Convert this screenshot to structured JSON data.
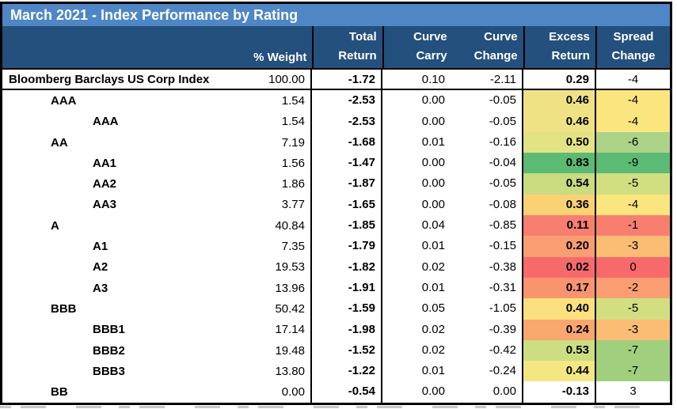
{
  "title": "March 2021 - Index Performance by Rating",
  "colors": {
    "title_bar_bg": "#4E86C6",
    "header_bg": "#24507E",
    "grid_border": "#000000",
    "heatmap_low": "#F8696B",
    "heatmap_mid": "#FFEB84",
    "heatmap_high": "#63BE7B"
  },
  "table": {
    "header": {
      "weight": "% Weight",
      "columns": [
        {
          "line1": "Total",
          "line2": "Return"
        },
        {
          "line1": "Curve",
          "line2": "Carry"
        },
        {
          "line1": "Curve",
          "line2": "Change"
        },
        {
          "line1": "Excess",
          "line2": "Return"
        },
        {
          "line1": "Spread",
          "line2": "Change"
        }
      ]
    },
    "rows": [
      {
        "label": "Bloomberg Barclays US Corp Index",
        "indent": 0,
        "weight": "100.00",
        "total_return": "-1.72",
        "curve_carry": "0.10",
        "curve_change": "-2.11",
        "excess_return": "0.29",
        "spread_change": "-4",
        "excess_bg": "",
        "spread_bg": ""
      },
      {
        "label": "AAA",
        "indent": 1,
        "weight": "1.54",
        "total_return": "-2.53",
        "curve_carry": "0.00",
        "curve_change": "-0.05",
        "excess_return": "0.46",
        "spread_change": "-4",
        "excess_bg": "#EFE285",
        "spread_bg": "#FAE57E"
      },
      {
        "label": "AAA",
        "indent": 2,
        "weight": "1.54",
        "total_return": "-2.53",
        "curve_carry": "0.00",
        "curve_change": "-0.05",
        "excess_return": "0.46",
        "spread_change": "-4",
        "excess_bg": "#EFE285",
        "spread_bg": "#FAE57E"
      },
      {
        "label": "AA",
        "indent": 1,
        "weight": "7.19",
        "total_return": "-1.68",
        "curve_carry": "0.01",
        "curve_change": "-0.16",
        "excess_return": "0.50",
        "spread_change": "-6",
        "excess_bg": "#E4E383",
        "spread_bg": "#ABD287"
      },
      {
        "label": "AA1",
        "indent": 2,
        "weight": "1.56",
        "total_return": "-1.47",
        "curve_carry": "0.00",
        "curve_change": "-0.04",
        "excess_return": "0.83",
        "spread_change": "-9",
        "excess_bg": "#5BBA73",
        "spread_bg": "#5BBA73"
      },
      {
        "label": "AA2",
        "indent": 2,
        "weight": "1.86",
        "total_return": "-1.87",
        "curve_carry": "0.00",
        "curve_change": "-0.05",
        "excess_return": "0.54",
        "spread_change": "-5",
        "excess_bg": "#C9DC80",
        "spread_bg": "#D2DF81"
      },
      {
        "label": "AA3",
        "indent": 2,
        "weight": "3.77",
        "total_return": "-1.65",
        "curve_carry": "0.00",
        "curve_change": "-0.08",
        "excess_return": "0.36",
        "spread_change": "-4",
        "excess_bg": "#FBD273",
        "spread_bg": "#FAE57E"
      },
      {
        "label": "A",
        "indent": 1,
        "weight": "40.84",
        "total_return": "-1.85",
        "curve_carry": "0.04",
        "curve_change": "-0.85",
        "excess_return": "0.11",
        "spread_change": "-1",
        "excess_bg": "#F87F70",
        "spread_bg": "#F87F70"
      },
      {
        "label": "A1",
        "indent": 2,
        "weight": "7.35",
        "total_return": "-1.79",
        "curve_carry": "0.01",
        "curve_change": "-0.15",
        "excess_return": "0.20",
        "spread_change": "-3",
        "excess_bg": "#F99E72",
        "spread_bg": "#FBBC74"
      },
      {
        "label": "A2",
        "indent": 2,
        "weight": "19.53",
        "total_return": "-1.82",
        "curve_carry": "0.02",
        "curve_change": "-0.38",
        "excess_return": "0.02",
        "spread_change": "0",
        "excess_bg": "#F8696B",
        "spread_bg": "#F8696B"
      },
      {
        "label": "A3",
        "indent": 2,
        "weight": "13.96",
        "total_return": "-1.91",
        "curve_carry": "0.01",
        "curve_change": "-0.31",
        "excess_return": "0.17",
        "spread_change": "-2",
        "excess_bg": "#F9946F",
        "spread_bg": "#FA9D72"
      },
      {
        "label": "BBB",
        "indent": 1,
        "weight": "50.42",
        "total_return": "-1.59",
        "curve_carry": "0.05",
        "curve_change": "-1.05",
        "excess_return": "0.40",
        "spread_change": "-5",
        "excess_bg": "#FBE17D",
        "spread_bg": "#D2DF81"
      },
      {
        "label": "BBB1",
        "indent": 2,
        "weight": "17.14",
        "total_return": "-1.98",
        "curve_carry": "0.02",
        "curve_change": "-0.39",
        "excess_return": "0.24",
        "spread_change": "-3",
        "excess_bg": "#F9A66F",
        "spread_bg": "#FBBC74"
      },
      {
        "label": "BBB2",
        "indent": 2,
        "weight": "19.48",
        "total_return": "-1.52",
        "curve_carry": "0.02",
        "curve_change": "-0.42",
        "excess_return": "0.53",
        "spread_change": "-7",
        "excess_bg": "#CCDE81",
        "spread_bg": "#A0D07E"
      },
      {
        "label": "BBB3",
        "indent": 2,
        "weight": "13.80",
        "total_return": "-1.22",
        "curve_carry": "0.01",
        "curve_change": "-0.24",
        "excess_return": "0.44",
        "spread_change": "-7",
        "excess_bg": "#F3E784",
        "spread_bg": "#A0D07E"
      },
      {
        "label": "BB",
        "indent": 1,
        "weight": "0.00",
        "total_return": "-0.54",
        "curve_carry": "0.00",
        "curve_change": "0.00",
        "excess_return": "-0.13",
        "spread_change": "3",
        "excess_bg": "",
        "spread_bg": ""
      }
    ]
  },
  "chart_data": {
    "type": "table",
    "title": "March 2021 - Index Performance by Rating",
    "columns": [
      "% Weight",
      "Total Return",
      "Curve Carry",
      "Curve Change",
      "Excess Return",
      "Spread Change"
    ],
    "row_labels": [
      "Bloomberg Barclays US Corp Index",
      "AAA",
      "AAA",
      "AA",
      "AA1",
      "AA2",
      "AA3",
      "A",
      "A1",
      "A2",
      "A3",
      "BBB",
      "BBB1",
      "BBB2",
      "BBB3",
      "BB"
    ],
    "series": [
      {
        "name": "% Weight",
        "values": [
          100.0,
          1.54,
          1.54,
          7.19,
          1.56,
          1.86,
          3.77,
          40.84,
          7.35,
          19.53,
          13.96,
          50.42,
          17.14,
          19.48,
          13.8,
          0.0
        ]
      },
      {
        "name": "Total Return",
        "values": [
          -1.72,
          -2.53,
          -2.53,
          -1.68,
          -1.47,
          -1.87,
          -1.65,
          -1.85,
          -1.79,
          -1.82,
          -1.91,
          -1.59,
          -1.98,
          -1.52,
          -1.22,
          -0.54
        ]
      },
      {
        "name": "Curve Carry",
        "values": [
          0.1,
          0.0,
          0.0,
          0.01,
          0.0,
          0.0,
          0.0,
          0.04,
          0.01,
          0.02,
          0.01,
          0.05,
          0.02,
          0.02,
          0.01,
          0.0
        ]
      },
      {
        "name": "Curve Change",
        "values": [
          -2.11,
          -0.05,
          -0.05,
          -0.16,
          -0.04,
          -0.05,
          -0.08,
          -0.85,
          -0.15,
          -0.38,
          -0.31,
          -1.05,
          -0.39,
          -0.42,
          -0.24,
          0.0
        ]
      },
      {
        "name": "Excess Return",
        "values": [
          0.29,
          0.46,
          0.46,
          0.5,
          0.83,
          0.54,
          0.36,
          0.11,
          0.2,
          0.02,
          0.17,
          0.4,
          0.24,
          0.53,
          0.44,
          -0.13
        ]
      },
      {
        "name": "Spread Change",
        "values": [
          -4,
          -4,
          -4,
          -6,
          -9,
          -5,
          -4,
          -1,
          -3,
          0,
          -2,
          -5,
          -3,
          -7,
          -7,
          3
        ]
      }
    ],
    "heatmap_columns": [
      "Excess Return",
      "Spread Change"
    ],
    "heatmap_scale": "red-yellow-green (Excess Return: low=red/high=green; Spread Change: 0=red/-9=green); index row and BB row uncolored"
  }
}
